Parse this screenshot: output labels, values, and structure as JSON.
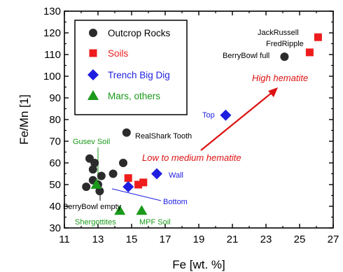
{
  "chart_data": {
    "type": "scatter",
    "xlabel": "Fe [wt. %]",
    "ylabel": "Fe/Mn [1]",
    "xlim": [
      11,
      27
    ],
    "ylim": [
      30,
      130
    ],
    "xticks": [
      11,
      13,
      15,
      17,
      19,
      21,
      23,
      25,
      27
    ],
    "yticks": [
      30,
      40,
      50,
      60,
      70,
      80,
      90,
      100,
      110,
      120,
      130
    ],
    "grid": false,
    "legend_position": "top-left",
    "series": [
      {
        "name": "Outcrop Rocks",
        "marker": "circle",
        "color": "#2b2b2b",
        "points": [
          {
            "x": 12.3,
            "y": 49
          },
          {
            "x": 12.5,
            "y": 62
          },
          {
            "x": 12.7,
            "y": 57
          },
          {
            "x": 12.8,
            "y": 60
          },
          {
            "x": 12.7,
            "y": 52
          },
          {
            "x": 13.0,
            "y": 50
          },
          {
            "x": 13.1,
            "y": 47
          },
          {
            "x": 13.2,
            "y": 54
          },
          {
            "x": 13.9,
            "y": 55
          },
          {
            "x": 14.5,
            "y": 60
          },
          {
            "x": 14.7,
            "y": 74
          },
          {
            "x": 24.1,
            "y": 109
          }
        ]
      },
      {
        "name": "Soils",
        "marker": "square",
        "color": "#ee1c1c",
        "points": [
          {
            "x": 14.8,
            "y": 53
          },
          {
            "x": 15.4,
            "y": 50
          },
          {
            "x": 15.7,
            "y": 51
          },
          {
            "x": 25.6,
            "y": 111
          },
          {
            "x": 26.1,
            "y": 118
          }
        ]
      },
      {
        "name": "Trench Big Dig",
        "marker": "diamond",
        "color": "#1e1ee0",
        "points": [
          {
            "x": 14.8,
            "y": 49
          },
          {
            "x": 16.5,
            "y": 55
          },
          {
            "x": 20.6,
            "y": 82
          }
        ]
      },
      {
        "name": "Mars, others",
        "marker": "triangle",
        "color": "#1a9a1a",
        "points": [
          {
            "x": 12.9,
            "y": 50
          },
          {
            "x": 14.3,
            "y": 38
          },
          {
            "x": 15.6,
            "y": 38
          }
        ]
      }
    ],
    "annotations": [
      {
        "text": "JackRussell",
        "color": "#000000"
      },
      {
        "text": "FredRipple",
        "color": "#000000"
      },
      {
        "text": "BerryBowl full",
        "color": "#000000"
      },
      {
        "text": "High hematite",
        "color": "#dd1111"
      },
      {
        "text": "Top",
        "color": "#1e1ee0"
      },
      {
        "text": "RealShark Tooth",
        "color": "#000000"
      },
      {
        "text": "Gusev Soil",
        "color": "#1a9a1a"
      },
      {
        "text": "Low to medium hematite",
        "color": "#dd1111"
      },
      {
        "text": "Wall",
        "color": "#1e1ee0"
      },
      {
        "text": "Bottom",
        "color": "#1e1ee0"
      },
      {
        "text": "BerryBowl empty",
        "color": "#000000"
      },
      {
        "text": "Shergottites",
        "color": "#1a9a1a"
      },
      {
        "text": "MPF Soil",
        "color": "#1a9a1a"
      }
    ]
  }
}
